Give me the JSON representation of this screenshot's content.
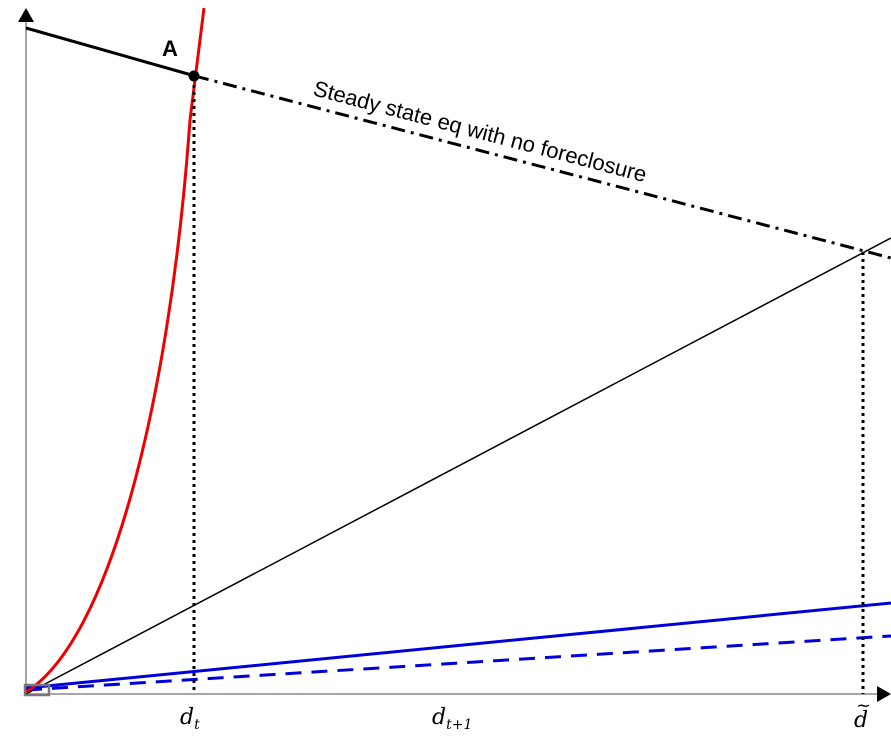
{
  "labels": {
    "point_a": "A",
    "annotation": "Steady state eq with no foreclosure",
    "x_tick_dt": "d",
    "x_tick_dt_sub": "t",
    "x_tick_dt1": "d",
    "x_tick_dt1_sub": "t+1",
    "x_tick_dtilde": "d",
    "x_tick_dtilde_accent": "~"
  },
  "colors": {
    "curve": "#ee0000",
    "blue": "#0000dd",
    "black": "#000000",
    "axis": "#888888",
    "origin_box": "#777777"
  }
}
